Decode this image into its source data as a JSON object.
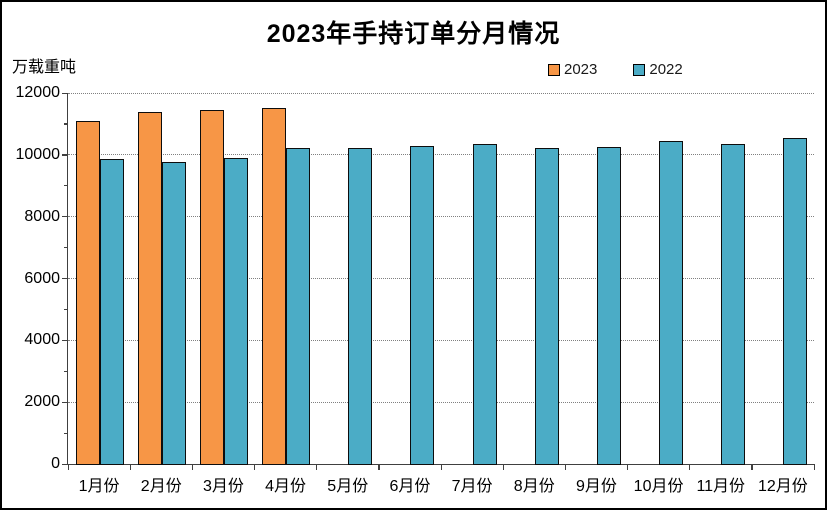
{
  "chart": {
    "title": "2023年手持订单分月情况",
    "unit_label": "万载重吨",
    "legend": [
      {
        "label": "2023",
        "color": "#F79646"
      },
      {
        "label": "2022",
        "color": "#4BACC6"
      }
    ]
  },
  "chart_data": {
    "type": "bar",
    "title": "2023年手持订单分月情况",
    "xlabel": "",
    "ylabel": "万载重吨",
    "categories": [
      "1月份",
      "2月份",
      "3月份",
      "4月份",
      "5月份",
      "6月份",
      "7月份",
      "8月份",
      "9月份",
      "10月份",
      "11月份",
      "12月份"
    ],
    "series": [
      {
        "name": "2023",
        "color": "#F79646",
        "values": [
          11080,
          11370,
          11450,
          11510,
          null,
          null,
          null,
          null,
          null,
          null,
          null,
          null
        ]
      },
      {
        "name": "2022",
        "color": "#4BACC6",
        "values": [
          9850,
          9780,
          9890,
          10230,
          10210,
          10280,
          10360,
          10210,
          10250,
          10440,
          10350,
          10550
        ]
      }
    ],
    "ylim": [
      0,
      12000
    ],
    "yticks": [
      0,
      2000,
      4000,
      6000,
      8000,
      10000,
      12000
    ],
    "minor_tick_step": 1000,
    "grid": true,
    "gridline_style": "dotted",
    "legend_position": "top-right",
    "bar_border_color": "#000000"
  },
  "colors": {
    "series_2023": "#F79646",
    "series_2022": "#4BACC6",
    "axis": "#404040",
    "gridline": "#808080",
    "text": "#000000",
    "background": "#FFFFFF",
    "frame_border": "#000000"
  }
}
